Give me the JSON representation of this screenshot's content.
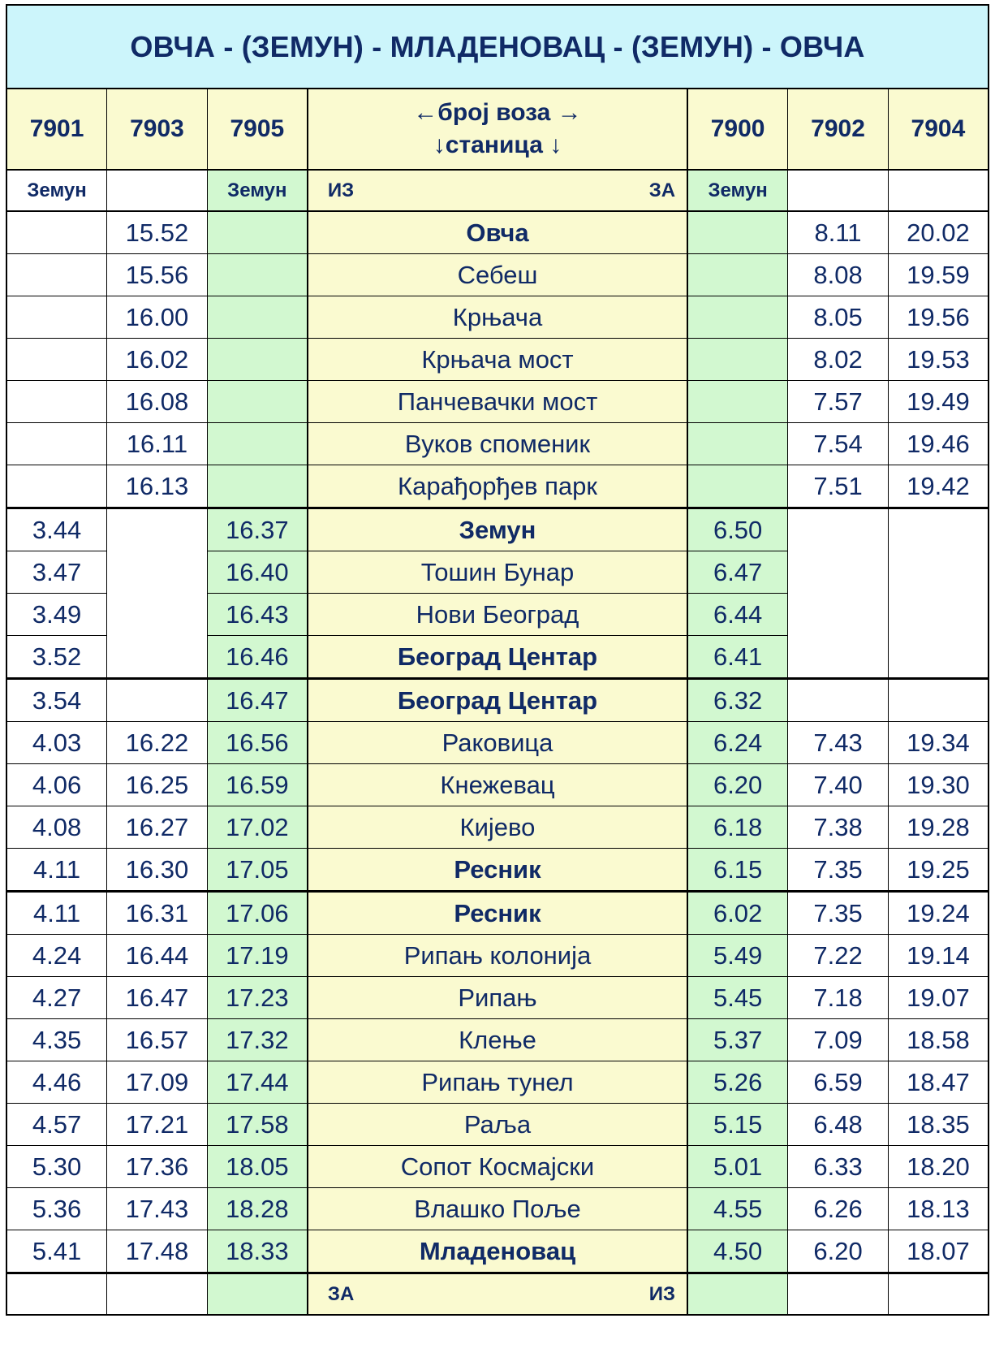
{
  "title": "ОВЧА - (ЗЕМУН) - МЛАДЕНОВАЦ - (ЗЕМУН) - ОВЧА",
  "header": {
    "left_trains": [
      "7901",
      "7903",
      "7905"
    ],
    "middle_line1": "←број воза →",
    "middle_line2": "↓станица ↓",
    "right_trains": [
      "7900",
      "7902",
      "7904"
    ]
  },
  "subheader": {
    "c1": "Земун",
    "c2": "",
    "c3": "Земун",
    "iz": "ИЗ",
    "za": "ЗА",
    "c5": "Земун",
    "c6": "",
    "c7": ""
  },
  "groups": [
    {
      "rows": [
        {
          "t7901": "",
          "t7903": "15.52",
          "t7905": "",
          "station": "Овча",
          "bold": true,
          "t7900": "",
          "t7902": "8.11",
          "t7904": "20.02"
        },
        {
          "t7901": "",
          "t7903": "15.56",
          "t7905": "",
          "station": "Себеш",
          "bold": false,
          "t7900": "",
          "t7902": "8.08",
          "t7904": "19.59"
        },
        {
          "t7901": "",
          "t7903": "16.00",
          "t7905": "",
          "station": "Крњача",
          "bold": false,
          "t7900": "",
          "t7902": "8.05",
          "t7904": "19.56"
        },
        {
          "t7901": "",
          "t7903": "16.02",
          "t7905": "",
          "station": "Крњача мост",
          "bold": false,
          "t7900": "",
          "t7902": "8.02",
          "t7904": "19.53"
        },
        {
          "t7901": "",
          "t7903": "16.08",
          "t7905": "",
          "station": "Панчевачки мост",
          "bold": false,
          "t7900": "",
          "t7902": "7.57",
          "t7904": "19.49"
        },
        {
          "t7901": "",
          "t7903": "16.11",
          "t7905": "",
          "station": "Вуков споменик",
          "bold": false,
          "t7900": "",
          "t7902": "7.54",
          "t7904": "19.46"
        },
        {
          "t7901": "",
          "t7903": "16.13",
          "t7905": "",
          "station": "Карађорђев парк",
          "bold": false,
          "t7900": "",
          "t7902": "7.51",
          "t7904": "19.42"
        }
      ]
    },
    {
      "rows": [
        {
          "t7901": "3.44",
          "t7903": "",
          "t7905": "16.37",
          "station": "Земун",
          "bold": true,
          "t7900": "6.50",
          "t7902": "",
          "t7904": ""
        },
        {
          "t7901": "3.47",
          "t7903": "",
          "t7905": "16.40",
          "station": "Тошин Бунар",
          "bold": false,
          "t7900": "6.47",
          "t7902": "",
          "t7904": ""
        },
        {
          "t7901": "3.49",
          "t7903": "",
          "t7905": "16.43",
          "station": "Нови Београд",
          "bold": false,
          "t7900": "6.44",
          "t7902": "",
          "t7904": ""
        },
        {
          "t7901": "3.52",
          "t7903": "",
          "t7905": "16.46",
          "station": "Београд Центар",
          "bold": true,
          "t7900": "6.41",
          "t7902": "",
          "t7904": ""
        }
      ]
    },
    {
      "rows": [
        {
          "t7901": "3.54",
          "t7903": "",
          "t7905": "16.47",
          "station": "Београд Центар",
          "bold": true,
          "t7900": "6.32",
          "t7902": "",
          "t7904": ""
        },
        {
          "t7901": "4.03",
          "t7903": "16.22",
          "t7905": "16.56",
          "station": "Раковица",
          "bold": false,
          "t7900": "6.24",
          "t7902": "7.43",
          "t7904": "19.34"
        },
        {
          "t7901": "4.06",
          "t7903": "16.25",
          "t7905": "16.59",
          "station": "Кнежевац",
          "bold": false,
          "t7900": "6.20",
          "t7902": "7.40",
          "t7904": "19.30"
        },
        {
          "t7901": "4.08",
          "t7903": "16.27",
          "t7905": "17.02",
          "station": "Кијево",
          "bold": false,
          "t7900": "6.18",
          "t7902": "7.38",
          "t7904": "19.28"
        },
        {
          "t7901": "4.11",
          "t7903": "16.30",
          "t7905": "17.05",
          "station": "Ресник",
          "bold": true,
          "t7900": "6.15",
          "t7902": "7.35",
          "t7904": "19.25"
        }
      ]
    },
    {
      "rows": [
        {
          "t7901": "4.11",
          "t7903": "16.31",
          "t7905": "17.06",
          "station": "Ресник",
          "bold": true,
          "t7900": "6.02",
          "t7902": "7.35",
          "t7904": "19.24"
        },
        {
          "t7901": "4.24",
          "t7903": "16.44",
          "t7905": "17.19",
          "station": "Рипањ колонија",
          "bold": false,
          "t7900": "5.49",
          "t7902": "7.22",
          "t7904": "19.14"
        },
        {
          "t7901": "4.27",
          "t7903": "16.47",
          "t7905": "17.23",
          "station": "Рипањ",
          "bold": false,
          "t7900": "5.45",
          "t7902": "7.18",
          "t7904": "19.07"
        },
        {
          "t7901": "4.35",
          "t7903": "16.57",
          "t7905": "17.32",
          "station": "Клење",
          "bold": false,
          "t7900": "5.37",
          "t7902": "7.09",
          "t7904": "18.58"
        },
        {
          "t7901": "4.46",
          "t7903": "17.09",
          "t7905": "17.44",
          "station": "Рипањ тунел",
          "bold": false,
          "t7900": "5.26",
          "t7902": "6.59",
          "t7904": "18.47"
        },
        {
          "t7901": "4.57",
          "t7903": "17.21",
          "t7905": "17.58",
          "station": "Раља",
          "bold": false,
          "t7900": "5.15",
          "t7902": "6.48",
          "t7904": "18.35"
        },
        {
          "t7901": "5.30",
          "t7903": "17.36",
          "t7905": "18.05",
          "station": "Сопот Космајски",
          "bold": false,
          "t7900": "5.01",
          "t7902": "6.33",
          "t7904": "18.20"
        },
        {
          "t7901": "5.36",
          "t7903": "17.43",
          "t7905": "18.28",
          "station": "Влашко Поље",
          "bold": false,
          "t7900": "4.55",
          "t7902": "6.26",
          "t7904": "18.13"
        },
        {
          "t7901": "5.41",
          "t7903": "17.48",
          "t7905": "18.33",
          "station": "Младеновац",
          "bold": true,
          "t7900": "4.50",
          "t7902": "6.20",
          "t7904": "18.07"
        }
      ]
    }
  ],
  "footer": {
    "za": "ЗА",
    "iz": "ИЗ"
  },
  "colors": {
    "text": "#102a66",
    "title_bg": "#ccf5fb",
    "yellow": "#fafad0",
    "green": "#d2f8d0"
  }
}
